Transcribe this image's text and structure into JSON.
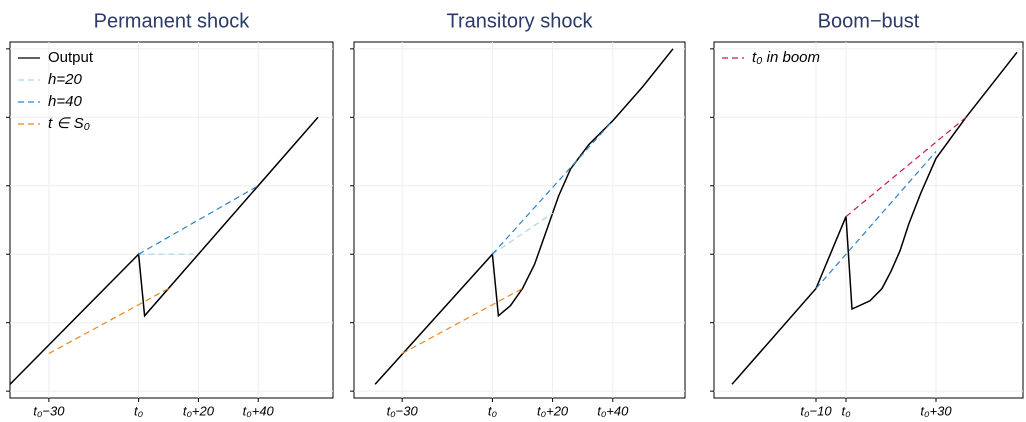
{
  "chart_data": [
    {
      "type": "line",
      "title": "Permanent shock",
      "xlim": [
        -43,
        65
      ],
      "ylim": [
        -0.1,
        5.1
      ],
      "grid": true,
      "xticks": [
        {
          "value": -30,
          "label": "t₀−30"
        },
        {
          "value": 0,
          "label": "t₀"
        },
        {
          "value": 20,
          "label": "t₀+20"
        },
        {
          "value": 40,
          "label": "t₀+40"
        }
      ],
      "yticks": [
        0,
        1,
        2,
        3,
        4,
        5
      ],
      "series": [
        {
          "name": "Output",
          "color": "#000000",
          "dash": false,
          "x": [
            -43,
            0,
            2,
            60
          ],
          "values": [
            0.1,
            2.0,
            1.1,
            4.0
          ]
        },
        {
          "name": "h=20",
          "color": "#a6d5ea",
          "dash": true,
          "x": [
            0,
            20
          ],
          "values": [
            2.0,
            2.0
          ]
        },
        {
          "name": "h=40",
          "color": "#2b83c8",
          "dash": true,
          "x": [
            0,
            40
          ],
          "values": [
            2.0,
            3.0
          ]
        },
        {
          "name": "t ∈ S₀",
          "color": "#e8851a",
          "dash": true,
          "x": [
            -30,
            10
          ],
          "values": [
            0.55,
            1.5
          ]
        }
      ]
    },
    {
      "type": "line",
      "title": "Transitory shock",
      "xlim": [
        -46,
        64
      ],
      "ylim": [
        -0.1,
        5.1
      ],
      "grid": true,
      "xticks": [
        {
          "value": -30,
          "label": "t₀−30"
        },
        {
          "value": 0,
          "label": "t₀"
        },
        {
          "value": 20,
          "label": "t₀+20"
        },
        {
          "value": 40,
          "label": "t₀+40"
        }
      ],
      "yticks": [
        0,
        1,
        2,
        3,
        4,
        5
      ],
      "series": [
        {
          "color": "#000000",
          "dash": false,
          "x": [
            -39,
            0,
            2,
            6,
            10,
            14,
            18,
            22,
            26,
            32,
            40,
            50,
            60
          ],
          "values": [
            0.1,
            2.0,
            1.1,
            1.25,
            1.5,
            1.85,
            2.35,
            2.85,
            3.25,
            3.6,
            3.95,
            4.45,
            5.0
          ]
        },
        {
          "color": "#a6d5ea",
          "dash": true,
          "x": [
            0,
            20
          ],
          "values": [
            2.0,
            2.6
          ]
        },
        {
          "color": "#2b83c8",
          "dash": true,
          "x": [
            0,
            40
          ],
          "values": [
            2.0,
            3.95
          ]
        },
        {
          "color": "#e8851a",
          "dash": true,
          "x": [
            -30,
            10
          ],
          "values": [
            0.55,
            1.5
          ]
        }
      ]
    },
    {
      "type": "line",
      "title": "Boom−bust",
      "xlim": [
        -44,
        59
      ],
      "ylim": [
        -0.1,
        5.1
      ],
      "grid": true,
      "xticks": [
        {
          "value": -10,
          "label": "t₀−10"
        },
        {
          "value": 0,
          "label": "t₀"
        },
        {
          "value": 30,
          "label": "t₀+30"
        }
      ],
      "yticks": [
        0,
        1,
        2,
        3,
        4,
        5
      ],
      "series": [
        {
          "color": "#000000",
          "dash": false,
          "x": [
            -38,
            -10,
            0,
            2,
            8,
            12,
            15,
            18,
            21,
            25,
            30,
            40,
            57
          ],
          "values": [
            0.1,
            1.5,
            2.55,
            1.2,
            1.32,
            1.5,
            1.75,
            2.05,
            2.45,
            2.9,
            3.4,
            4.0,
            4.95
          ]
        },
        {
          "color": "#2b83c8",
          "dash": true,
          "x": [
            -10,
            30
          ],
          "values": [
            1.5,
            3.5
          ]
        },
        {
          "name": "t₀ in boom",
          "color": "#c8185a",
          "dash": true,
          "x": [
            0,
            40
          ],
          "values": [
            2.55,
            4.0
          ]
        }
      ]
    }
  ]
}
